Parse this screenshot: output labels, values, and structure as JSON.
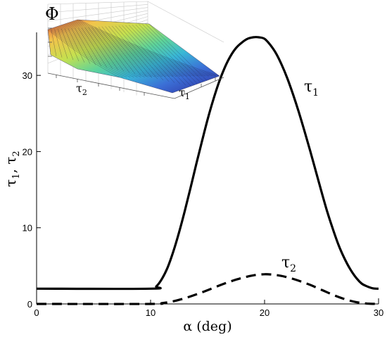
{
  "chart_data": {
    "type": "line",
    "xlabel": "α (deg)",
    "ylabel": "τ1, τ2",
    "xlim": [
      0,
      30
    ],
    "ylim": [
      0,
      35
    ],
    "x_ticks": [
      0,
      10,
      20,
      30
    ],
    "y_ticks": [
      0,
      10,
      20,
      30
    ],
    "grid": false,
    "legend": "none",
    "series": [
      {
        "name": "τ1",
        "style": "solid",
        "color": "#000000",
        "x": [
          0,
          10,
          10.5,
          11,
          11.5,
          12,
          12.5,
          13,
          13.5,
          14,
          14.5,
          15,
          15.5,
          16,
          16.5,
          17,
          17.5,
          18,
          18.5,
          19,
          19.5,
          20,
          20.5,
          21,
          21.5,
          22,
          22.5,
          23,
          23.5,
          24,
          24.5,
          25,
          25.5,
          26,
          26.5,
          27,
          27.5,
          28,
          28.5,
          29,
          29.5,
          30
        ],
        "y": [
          2.0,
          2.0,
          2.3,
          3.3,
          4.8,
          6.9,
          9.4,
          12.2,
          15.2,
          18.3,
          21.3,
          24.2,
          26.8,
          29.1,
          31.0,
          32.5,
          33.6,
          34.3,
          34.8,
          35.0,
          35.0,
          34.8,
          34.0,
          32.9,
          31.4,
          29.6,
          27.5,
          25.2,
          22.7,
          20.1,
          17.4,
          14.7,
          12.1,
          9.8,
          7.7,
          6.0,
          4.6,
          3.5,
          2.7,
          2.3,
          2.05,
          2.0
        ]
      },
      {
        "name": "τ2",
        "style": "dashed",
        "color": "#000000",
        "x": [
          0,
          10,
          11,
          12,
          13,
          14,
          15,
          16,
          17,
          18,
          19,
          20,
          21,
          22,
          23,
          24,
          25,
          26,
          27,
          28,
          29,
          30
        ],
        "y": [
          0.0,
          0.0,
          0.1,
          0.35,
          0.75,
          1.25,
          1.8,
          2.4,
          2.95,
          3.4,
          3.75,
          3.9,
          3.8,
          3.5,
          3.05,
          2.5,
          1.85,
          1.2,
          0.65,
          0.25,
          0.05,
          0.0
        ]
      }
    ],
    "inset": {
      "type": "surface",
      "zlabel": "Φ",
      "xlabel": "τ1",
      "ylabel": "τ2",
      "colormap": [
        "#2d2a9c",
        "#3b6fd6",
        "#39b7d6",
        "#5ed39a",
        "#c5e04f",
        "#f2c34b",
        "#e0513a"
      ]
    }
  },
  "labels": {
    "xlabel_main": "α (deg)",
    "ylabel_tau": "τ",
    "ylabel_sub1": "1",
    "ylabel_sep": ", ",
    "ylabel_tau2": "τ",
    "ylabel_sub2": "2",
    "series1_tau": "τ",
    "series1_sub": "1",
    "series2_tau": "τ",
    "series2_sub": "2",
    "inset_z": "Φ",
    "inset_x_tau": "τ",
    "inset_x_sub": "1",
    "inset_y_tau": "τ",
    "inset_y_sub": "2"
  }
}
